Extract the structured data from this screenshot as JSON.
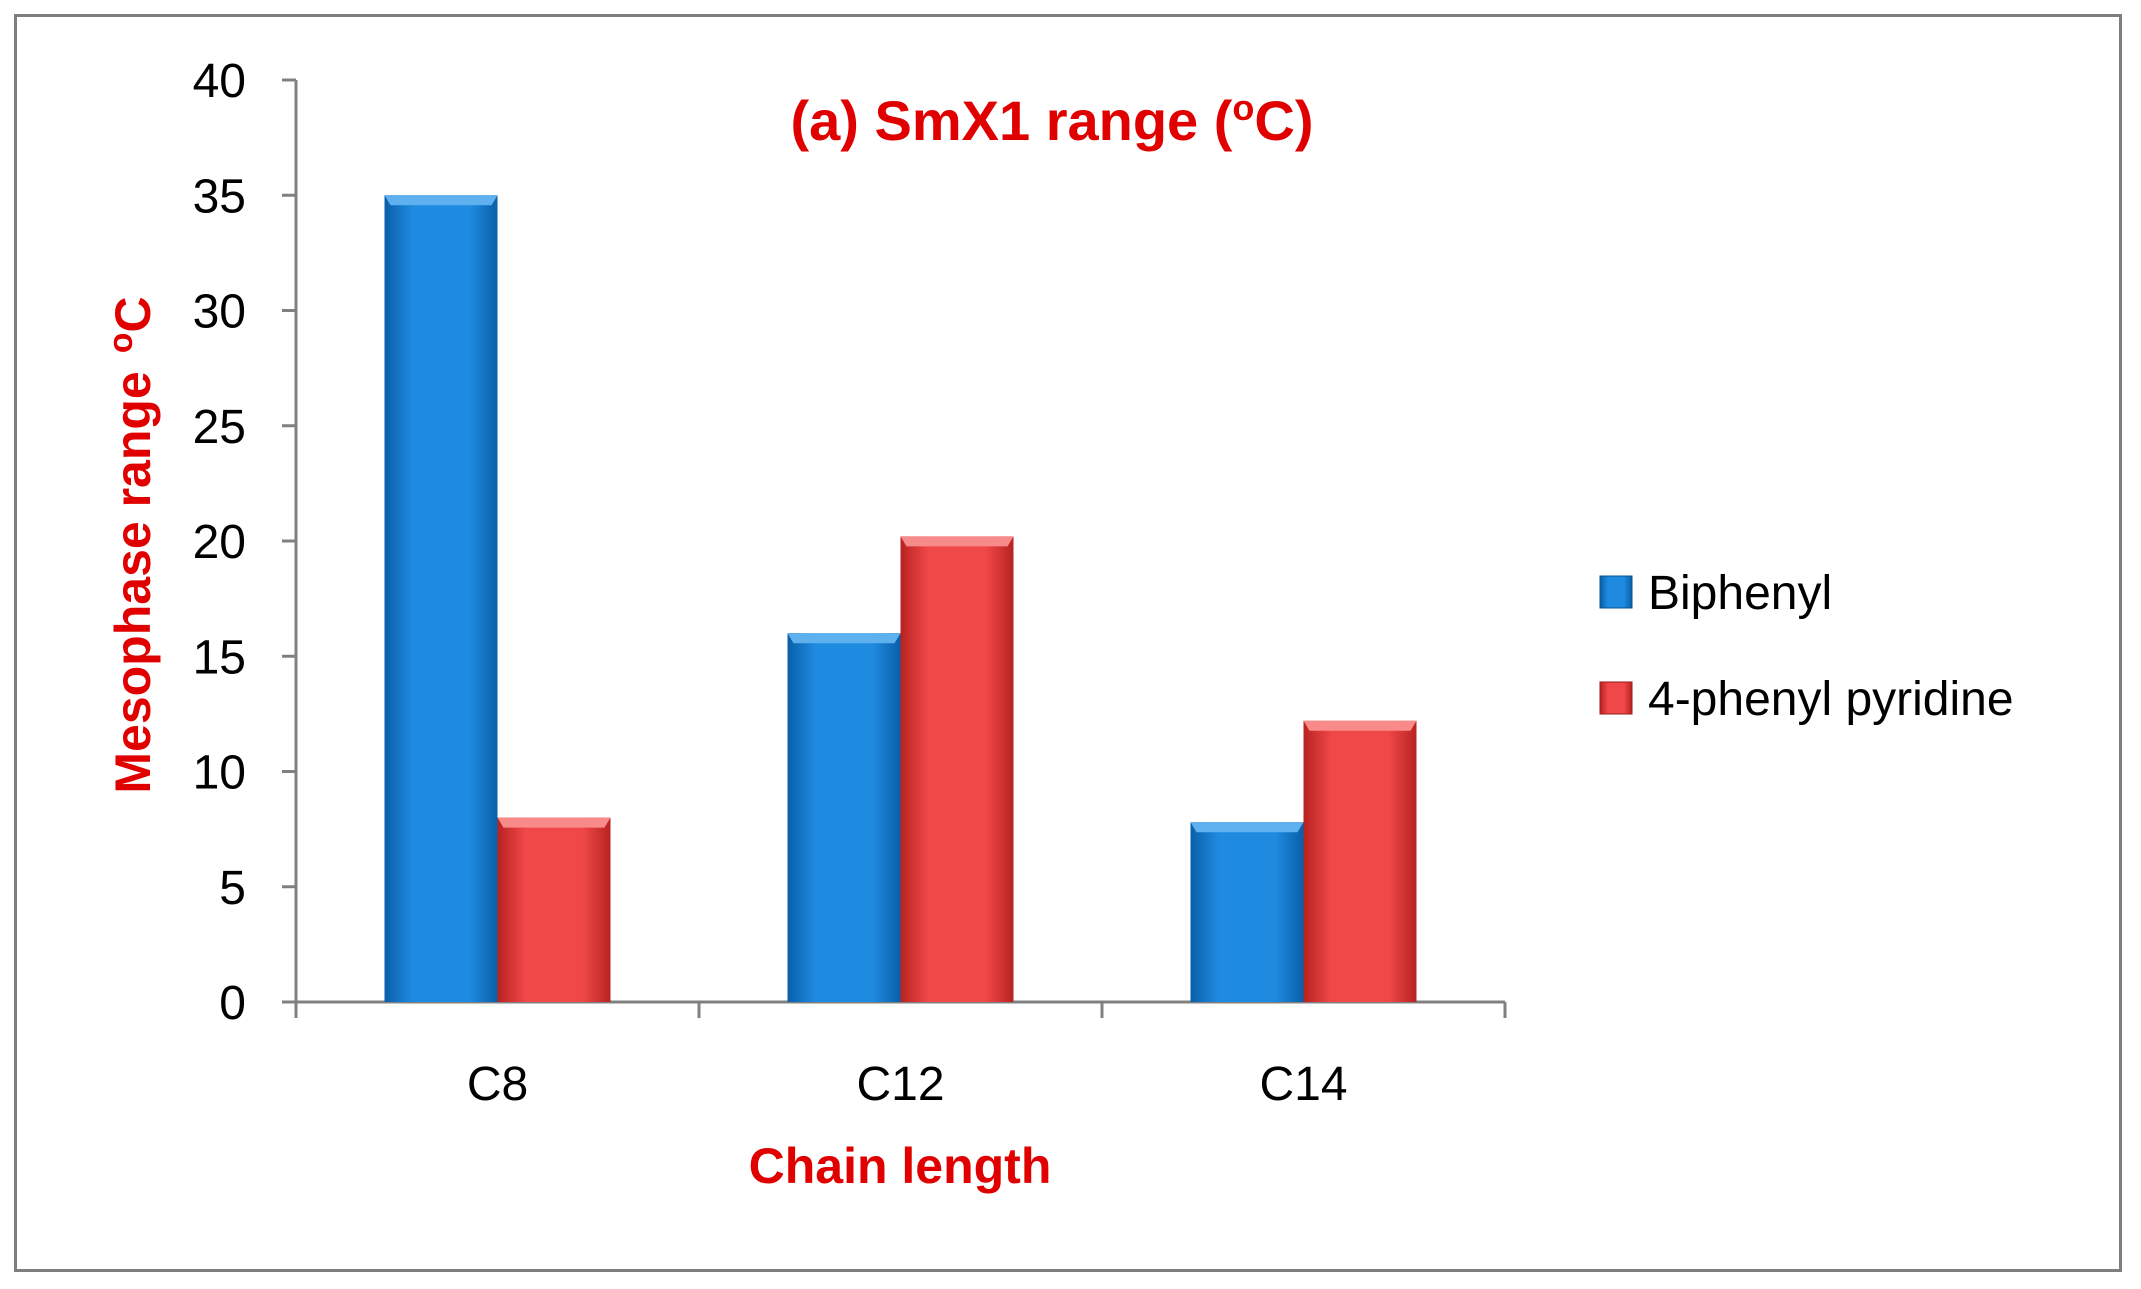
{
  "chart_data": {
    "type": "bar",
    "title": "(a) SmX1 range (",
    "title_sup": "o",
    "title_end": "C)",
    "xlabel": "Chain length",
    "ylabel": "Mesophase range",
    "ylabel_sup": "o",
    "ylabel_end": "C",
    "categories": [
      "C8",
      "C12",
      "C14"
    ],
    "series": [
      {
        "name": "Biphenyl",
        "values": [
          35,
          16,
          7.8
        ],
        "color": "#1a7fd4"
      },
      {
        "name": "4-phenyl pyridine",
        "values": [
          8,
          20.2,
          12.2
        ],
        "color": "#e83a3a"
      }
    ],
    "ylim": [
      0,
      40
    ],
    "yticks": [
      0,
      5,
      10,
      15,
      20,
      25,
      30,
      35,
      40
    ],
    "legend_position": "right",
    "grid": false
  }
}
